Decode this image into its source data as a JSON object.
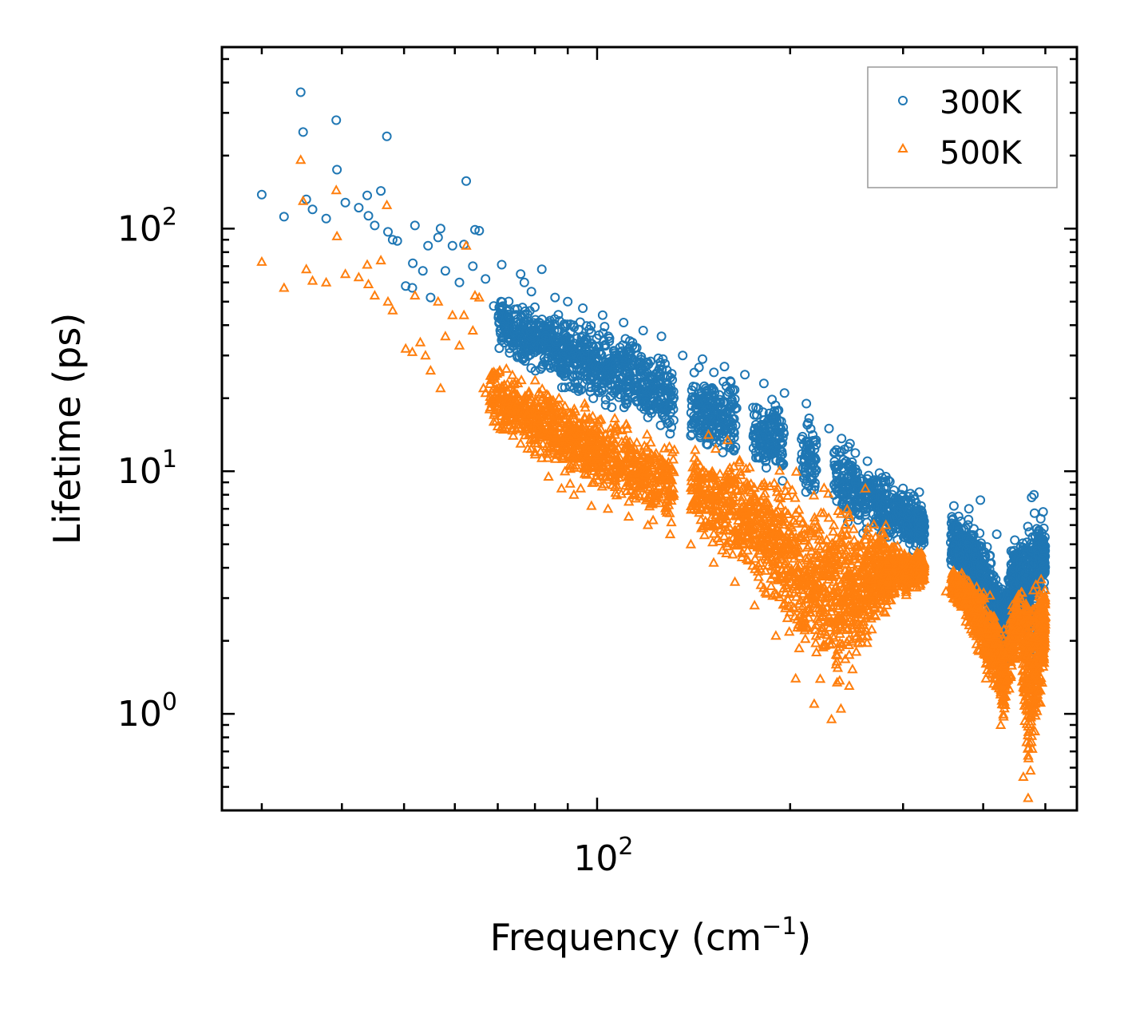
{
  "chart_data": {
    "type": "scatter",
    "title": "",
    "xlabel": "Frequency (cm",
    "xlabel_sup": "−1",
    "xlabel_end": ")",
    "ylabel": "Lifetime (ps)",
    "xscale": "log",
    "yscale": "log",
    "xlim": [
      26,
      560
    ],
    "ylim": [
      0.4,
      560
    ],
    "x_ticks": [
      {
        "value": 100,
        "base": "10",
        "exp": "2"
      }
    ],
    "y_ticks": [
      {
        "value": 1,
        "base": "10",
        "exp": "0"
      },
      {
        "value": 10,
        "base": "10",
        "exp": "1"
      },
      {
        "value": 100,
        "base": "10",
        "exp": "2"
      }
    ],
    "legend_position": "top-right",
    "series": [
      {
        "name": "300K",
        "marker": "circle",
        "color": "#1f77b4",
        "points": [
          [
            30,
            138
          ],
          [
            32.5,
            112
          ],
          [
            34.5,
            365
          ],
          [
            34.8,
            250
          ],
          [
            35.2,
            132
          ],
          [
            36,
            120
          ],
          [
            37.8,
            110
          ],
          [
            39.2,
            280
          ],
          [
            39.3,
            175
          ],
          [
            40.5,
            128
          ],
          [
            42.5,
            122
          ],
          [
            43.8,
            137
          ],
          [
            44,
            113
          ],
          [
            45,
            103
          ],
          [
            46,
            143
          ],
          [
            47,
            240
          ],
          [
            47.2,
            97
          ],
          [
            48,
            90
          ],
          [
            48.8,
            89
          ],
          [
            50.3,
            58
          ],
          [
            51.5,
            57
          ],
          [
            51.6,
            72
          ],
          [
            52,
            103
          ],
          [
            53.5,
            67
          ],
          [
            54.5,
            85
          ],
          [
            55,
            52
          ],
          [
            56.5,
            92
          ],
          [
            57,
            100
          ],
          [
            58,
            67
          ],
          [
            59.5,
            85
          ],
          [
            61,
            60
          ],
          [
            62,
            86
          ],
          [
            62.5,
            157
          ],
          [
            64,
            70
          ],
          [
            64.5,
            99
          ],
          [
            65.5,
            98
          ],
          [
            67,
            62
          ],
          [
            69,
            48
          ],
          [
            71,
            71
          ],
          [
            76,
            65
          ],
          [
            77,
            60
          ],
          [
            79,
            55
          ],
          [
            82,
            68
          ],
          [
            86,
            52
          ],
          [
            90,
            50
          ],
          [
            95,
            47
          ],
          [
            102,
            44
          ],
          [
            110,
            41
          ],
          [
            118,
            38
          ],
          [
            126,
            36
          ],
          [
            136,
            30
          ],
          [
            146,
            29
          ],
          [
            158,
            27
          ],
          [
            170,
            25
          ],
          [
            182,
            23
          ],
          [
            196,
            21
          ],
          [
            212,
            19
          ],
          [
            230,
            15
          ],
          [
            248,
            13
          ],
          [
            264,
            11
          ],
          [
            282,
            9.5
          ],
          [
            300,
            8.5
          ],
          [
            318,
            8.2
          ],
          [
            360,
            7.2
          ],
          [
            380,
            7
          ],
          [
            396,
            7.6
          ],
          [
            420,
            5.5
          ],
          [
            448,
            5.2
          ],
          [
            476,
            7.8
          ],
          [
            480,
            8
          ],
          [
            496,
            6.8
          ]
        ],
        "bands": [
          [
            66,
            36,
            58
          ],
          [
            70,
            30,
            56
          ],
          [
            74,
            27,
            54
          ],
          [
            78,
            25,
            52
          ],
          [
            82,
            24,
            50
          ],
          [
            86,
            22,
            49
          ],
          [
            90,
            20,
            47
          ],
          [
            95,
            19,
            45
          ],
          [
            100,
            17,
            43
          ],
          [
            106,
            16,
            41
          ],
          [
            112,
            15,
            39
          ],
          [
            118,
            14,
            37
          ],
          [
            125,
            13,
            34
          ],
          [
            132,
            12,
            31
          ],
          [
            140,
            11.5,
            29
          ],
          [
            148,
            11,
            28
          ],
          [
            156,
            10.5,
            27
          ],
          [
            165,
            10,
            26
          ],
          [
            175,
            9.5,
            24
          ],
          [
            185,
            8.5,
            23
          ],
          [
            196,
            7.8,
            22
          ],
          [
            208,
            7,
            20
          ],
          [
            220,
            6.5,
            18
          ],
          [
            234,
            6,
            16
          ],
          [
            248,
            5.5,
            14
          ],
          [
            262,
            5.2,
            12
          ],
          [
            276,
            5,
            10.5
          ],
          [
            290,
            4.8,
            9.5
          ],
          [
            304,
            4.6,
            9
          ],
          [
            316,
            4.5,
            8.5
          ],
          [
            324,
            4.5,
            7.5
          ],
          [
            356,
            3.8,
            7.2
          ],
          [
            366,
            3.4,
            7
          ],
          [
            376,
            3,
            6.8
          ],
          [
            386,
            2.6,
            6.5
          ],
          [
            396,
            2.3,
            6
          ],
          [
            406,
            2,
            5.4
          ],
          [
            416,
            1.7,
            4.8
          ],
          [
            426,
            1.5,
            4
          ],
          [
            432,
            1.4,
            3.6
          ],
          [
            444,
            2.2,
            5.4
          ],
          [
            456,
            2.6,
            6
          ],
          [
            466,
            1.6,
            6.5
          ],
          [
            476,
            1.3,
            7.6
          ],
          [
            486,
            2.5,
            7.4
          ],
          [
            494,
            3,
            6.5
          ],
          [
            500,
            3.2,
            6.2
          ]
        ]
      },
      {
        "name": "500K",
        "marker": "triangle",
        "color": "#ff7f0e",
        "points": [
          [
            30,
            73
          ],
          [
            32.5,
            57
          ],
          [
            34.5,
            192
          ],
          [
            34.8,
            130
          ],
          [
            35.2,
            68
          ],
          [
            36,
            61
          ],
          [
            37.8,
            60
          ],
          [
            39.2,
            144
          ],
          [
            39.3,
            93
          ],
          [
            40.5,
            65
          ],
          [
            42.5,
            63
          ],
          [
            43.8,
            71
          ],
          [
            44,
            59
          ],
          [
            45,
            53
          ],
          [
            46,
            74
          ],
          [
            47,
            125
          ],
          [
            47.2,
            50
          ],
          [
            48,
            46
          ],
          [
            50.3,
            32
          ],
          [
            51.5,
            31
          ],
          [
            52,
            53
          ],
          [
            53,
            34
          ],
          [
            54,
            30
          ],
          [
            55,
            26
          ],
          [
            56.5,
            50
          ],
          [
            57,
            22
          ],
          [
            58,
            36
          ],
          [
            59.5,
            44
          ],
          [
            61,
            33
          ],
          [
            62,
            44
          ],
          [
            62.5,
            85
          ],
          [
            64,
            38
          ],
          [
            64.5,
            53
          ],
          [
            65.5,
            52
          ],
          [
            66.5,
            22
          ],
          [
            67,
            21
          ],
          [
            68,
            18
          ],
          [
            69,
            16
          ],
          [
            70.5,
            26
          ],
          [
            72,
            15
          ],
          [
            74,
            14
          ],
          [
            76,
            13
          ],
          [
            80,
            12
          ],
          [
            84,
            9.5
          ],
          [
            88,
            8.5
          ],
          [
            92,
            8
          ],
          [
            98,
            7.2
          ],
          [
            104,
            7
          ],
          [
            112,
            6.5
          ],
          [
            120,
            6
          ],
          [
            130,
            5.5
          ],
          [
            140,
            5
          ],
          [
            152,
            4.2
          ],
          [
            164,
            3.5
          ],
          [
            176,
            2.8
          ],
          [
            190,
            2.1
          ],
          [
            204,
            1.4
          ],
          [
            218,
            1.1
          ],
          [
            232,
            0.95
          ],
          [
            240,
            1.05
          ],
          [
            262,
            8.5
          ],
          [
            282,
            6
          ],
          [
            300,
            4.4
          ],
          [
            320,
            4.5
          ],
          [
            350,
            3.2
          ],
          [
            376,
            2.4
          ],
          [
            404,
            1.4
          ],
          [
            426,
            0.9
          ],
          [
            462,
            0.55
          ],
          [
            470,
            0.45
          ],
          [
            486,
            1.2
          ],
          [
            498,
            3
          ]
        ],
        "bands": [
          [
            68,
            15,
            30
          ],
          [
            72,
            13,
            28
          ],
          [
            76,
            12,
            26
          ],
          [
            80,
            11,
            25
          ],
          [
            84,
            10,
            24
          ],
          [
            88,
            9,
            22
          ],
          [
            92,
            8.5,
            21
          ],
          [
            96,
            8,
            20
          ],
          [
            100,
            7.5,
            19
          ],
          [
            106,
            7,
            18
          ],
          [
            112,
            6.5,
            17
          ],
          [
            118,
            6,
            16.5
          ],
          [
            125,
            5.6,
            16
          ],
          [
            132,
            5.2,
            15.5
          ],
          [
            140,
            4.8,
            15
          ],
          [
            148,
            4.4,
            14.5
          ],
          [
            156,
            4,
            14
          ],
          [
            164,
            3.6,
            13.5
          ],
          [
            172,
            3.2,
            13
          ],
          [
            180,
            2.8,
            12.5
          ],
          [
            188,
            2.4,
            12
          ],
          [
            196,
            2,
            11.5
          ],
          [
            204,
            1.6,
            11
          ],
          [
            212,
            1.4,
            10.5
          ],
          [
            220,
            1.2,
            10
          ],
          [
            228,
            1.05,
            9.5
          ],
          [
            236,
            1,
            9
          ],
          [
            244,
            1.1,
            8.5
          ],
          [
            252,
            1.3,
            8
          ],
          [
            260,
            1.5,
            7.5
          ],
          [
            268,
            1.8,
            7
          ],
          [
            276,
            2.1,
            6.5
          ],
          [
            284,
            2.5,
            6
          ],
          [
            292,
            2.8,
            5.6
          ],
          [
            300,
            3,
            5.2
          ],
          [
            310,
            3.1,
            5
          ],
          [
            318,
            3.2,
            4.8
          ],
          [
            324,
            3.4,
            4.6
          ],
          [
            356,
            2.9,
            4.2
          ],
          [
            366,
            2.6,
            4.1
          ],
          [
            376,
            2.3,
            4
          ],
          [
            386,
            1.9,
            3.9
          ],
          [
            396,
            1.6,
            3.7
          ],
          [
            406,
            1.3,
            3.4
          ],
          [
            416,
            1.1,
            3
          ],
          [
            426,
            0.9,
            2.6
          ],
          [
            432,
            0.85,
            2.4
          ],
          [
            444,
            1.4,
            3.2
          ],
          [
            456,
            1.8,
            3.6
          ],
          [
            466,
            0.6,
            4
          ],
          [
            472,
            0.45,
            4.4
          ],
          [
            480,
            0.55,
            4.3
          ],
          [
            488,
            0.8,
            4.1
          ],
          [
            496,
            1.2,
            4
          ],
          [
            500,
            1.5,
            3.8
          ]
        ]
      }
    ]
  }
}
